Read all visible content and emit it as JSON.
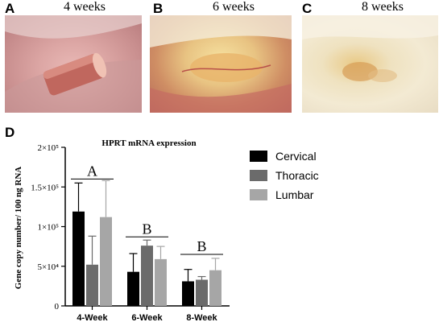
{
  "panels": [
    {
      "letter": "A",
      "title": "4 weeks"
    },
    {
      "letter": "B",
      "title": "6 weeks"
    },
    {
      "letter": "C",
      "title": "8 weeks"
    }
  ],
  "panel_d_letter": "D",
  "chart_data": {
    "type": "bar",
    "title": "HPRT mRNA expression",
    "xlabel": "",
    "ylabel": "Gene copy number/ 100 ng RNA",
    "categories": [
      "4-Week",
      "6-Week",
      "8-Week"
    ],
    "ylim": [
      0,
      200000
    ],
    "yticks": [
      0,
      50000,
      100000,
      150000,
      200000
    ],
    "ytick_labels": [
      "0",
      "5×10⁴",
      "1×10⁵",
      "1.5×10⁵",
      "2×10⁵"
    ],
    "series": [
      {
        "name": "Cervical",
        "color": "#000000",
        "values": [
          119000,
          43000,
          31000
        ],
        "errors": [
          36000,
          23000,
          15000
        ]
      },
      {
        "name": "Thoracic",
        "color": "#6b6b6b",
        "values": [
          52000,
          76000,
          33000
        ],
        "errors": [
          36000,
          7000,
          4000
        ]
      },
      {
        "name": "Lumbar",
        "color": "#a6a6a6",
        "values": [
          112000,
          59000,
          45000
        ],
        "errors": [
          46000,
          16000,
          15000
        ]
      }
    ],
    "group_labels": [
      {
        "text": "A",
        "level": 160000
      },
      {
        "text": "B",
        "level": 87000
      },
      {
        "text": "B",
        "level": 65000
      }
    ],
    "grid": false,
    "legend_position": "right"
  }
}
